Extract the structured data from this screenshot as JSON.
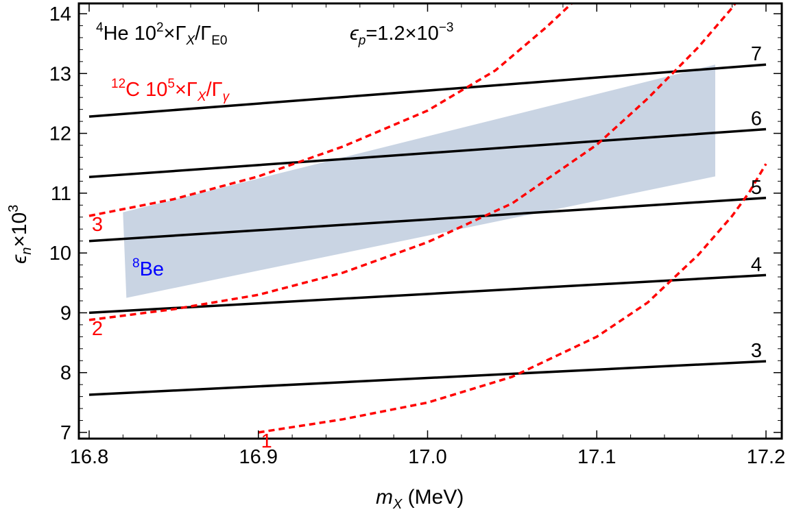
{
  "chart_data": {
    "type": "line",
    "title": "",
    "xlabel": {
      "main": "m",
      "sub": "X",
      "rest": " (MeV)"
    },
    "ylabel": {
      "main": "ϵ",
      "sub": "n",
      "rest": "×10",
      "sup": "3"
    },
    "xlim": [
      16.8,
      17.2
    ],
    "ylim": [
      6.8,
      14.05
    ],
    "grid": false,
    "xticks": [
      16.8,
      16.9,
      17.0,
      17.1,
      17.2
    ],
    "xtick_labels": [
      "16.8",
      "16.9",
      "17.0",
      "17.1",
      "17.2"
    ],
    "yticks": [
      7,
      8,
      9,
      10,
      11,
      12,
      13,
      14
    ],
    "ytick_labels": [
      "7",
      "8",
      "9",
      "10",
      "11",
      "12",
      "13",
      "14"
    ],
    "annotations": {
      "he4": {
        "sup1": "4",
        "base": "He 10",
        "sup2": "2",
        "rest": "×Γ",
        "sub1": "X",
        "slash": "/Γ",
        "sub2": "E0"
      },
      "c12": {
        "sup1": "12",
        "base": "C 10",
        "sup2": "5",
        "rest": "×Γ",
        "sub1": "X",
        "slash": "/Γ",
        "sub2": "γ"
      },
      "eps_p": {
        "main": "ϵ",
        "sub": "p",
        "rest": "=1.2×10",
        "sup": "−3"
      },
      "be8": {
        "sup": "8",
        "base": "Be"
      }
    },
    "colors": {
      "he4_lines": "#000000",
      "c12_lines": "#ff0000",
      "be8_band": "#c9d4e3",
      "be8_label": "#0000ff"
    },
    "be8_region": [
      [
        16.82,
        10.68
      ],
      [
        17.17,
        13.15
      ],
      [
        17.17,
        11.28
      ],
      [
        16.822,
        9.25
      ]
    ],
    "series": [
      {
        "name": "He4 3",
        "label": "3",
        "color": "#000000",
        "style": "solid",
        "x": [
          16.8,
          17.2
        ],
        "y": [
          7.63,
          8.19
        ]
      },
      {
        "name": "He4 4",
        "label": "4",
        "color": "#000000",
        "style": "solid",
        "x": [
          16.8,
          17.2
        ],
        "y": [
          9.0,
          9.63
        ]
      },
      {
        "name": "He4 5",
        "label": "5",
        "color": "#000000",
        "style": "solid",
        "x": [
          16.8,
          17.2
        ],
        "y": [
          10.2,
          10.92
        ]
      },
      {
        "name": "He4 6",
        "label": "6",
        "color": "#000000",
        "style": "solid",
        "x": [
          16.8,
          17.2
        ],
        "y": [
          11.27,
          12.07
        ]
      },
      {
        "name": "He4 7",
        "label": "7",
        "color": "#000000",
        "style": "solid",
        "x": [
          16.8,
          17.2
        ],
        "y": [
          12.28,
          13.15
        ]
      },
      {
        "name": "C12 1",
        "label": "1",
        "color": "#ff0000",
        "style": "dashed",
        "x": [
          16.9,
          16.95,
          17.0,
          17.05,
          17.1,
          17.13,
          17.16,
          17.18,
          17.19,
          17.2
        ],
        "y": [
          7.0,
          7.22,
          7.5,
          7.93,
          8.6,
          9.17,
          9.97,
          10.62,
          11.01,
          11.49
        ]
      },
      {
        "name": "C12 2",
        "label": "2",
        "color": "#ff0000",
        "style": "dashed",
        "x": [
          16.8,
          16.85,
          16.9,
          16.95,
          17.0,
          17.05,
          17.1,
          17.13,
          17.16,
          17.18,
          17.19
        ],
        "y": [
          8.88,
          9.06,
          9.3,
          9.67,
          10.18,
          10.83,
          11.81,
          12.58,
          13.44,
          14.1,
          14.5
        ]
      },
      {
        "name": "C12 3",
        "label": "3",
        "color": "#ff0000",
        "style": "dashed",
        "x": [
          16.8,
          16.85,
          16.9,
          16.95,
          17.0,
          17.04,
          17.07,
          17.09
        ],
        "y": [
          10.62,
          10.9,
          11.28,
          11.78,
          12.38,
          13.05,
          13.77,
          14.3
        ]
      }
    ]
  }
}
